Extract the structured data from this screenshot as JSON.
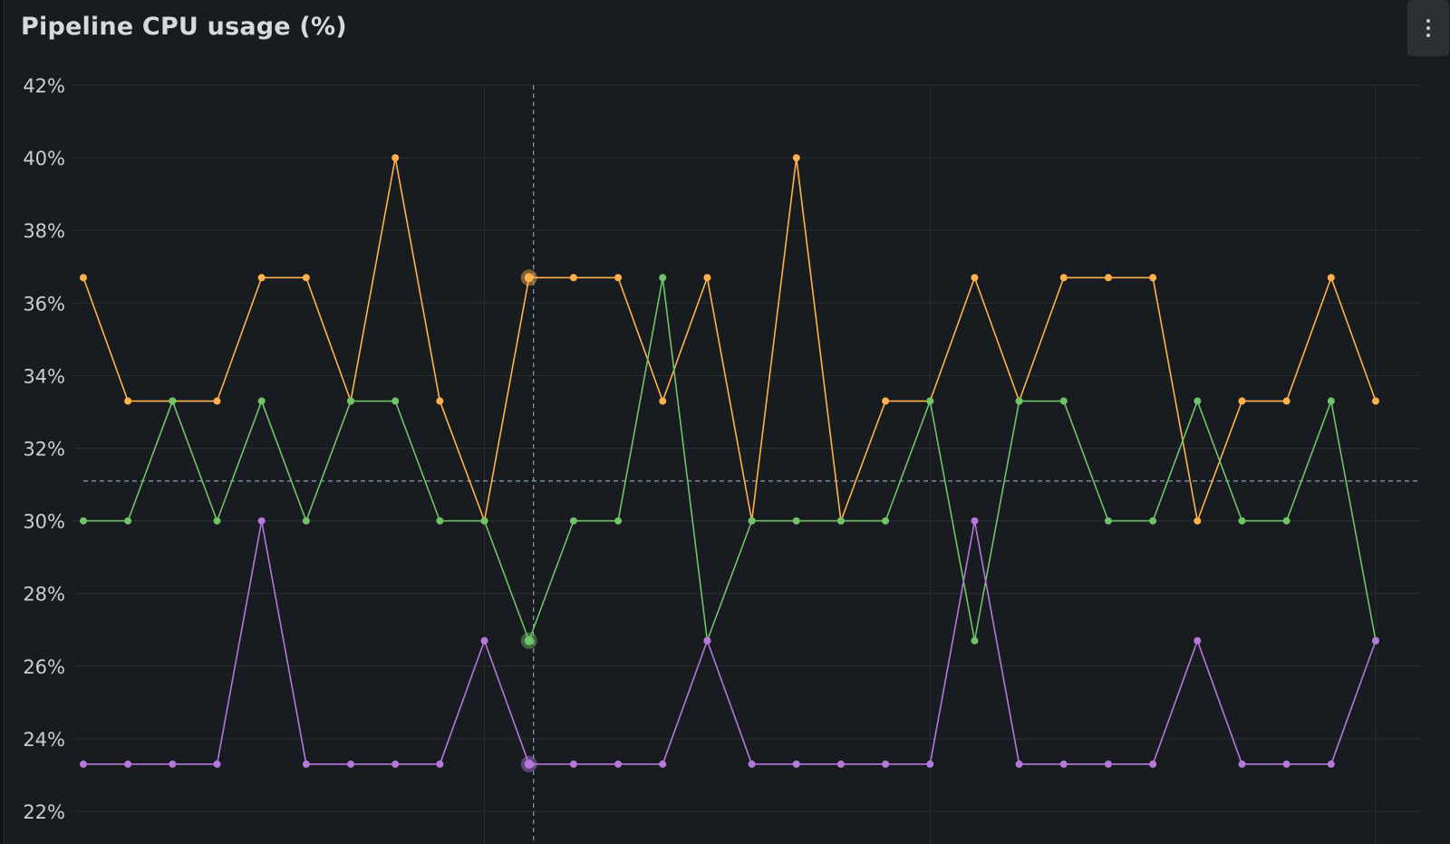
{
  "panel": {
    "title": "Pipeline CPU usage (%)",
    "menu_icon": "kebab-menu-icon"
  },
  "colors": {
    "background": "#181b1f",
    "grid": "#2b2e33",
    "crosshair": "#7a9aa5",
    "orange": "#ffb14d",
    "green": "#6fc467",
    "purple": "#b877db"
  },
  "chart_data": {
    "type": "line",
    "title": "Pipeline CPU usage (%)",
    "xlabel": "",
    "ylabel": "",
    "ylim": [
      22,
      42
    ],
    "yticks": [
      22,
      24,
      26,
      28,
      30,
      32,
      34,
      36,
      38,
      40,
      42
    ],
    "ytick_suffix": "%",
    "grid": true,
    "points_shown": true,
    "hover": {
      "index": 10,
      "y": 31.1
    },
    "series": [
      {
        "color": "#ffb14d",
        "values": [
          36.7,
          33.3,
          33.3,
          33.3,
          36.7,
          36.7,
          33.3,
          40,
          33.3,
          30,
          36.7,
          36.7,
          36.7,
          33.3,
          36.7,
          30,
          40,
          30,
          33.3,
          33.3,
          36.7,
          33.3,
          36.7,
          36.7,
          36.7,
          30,
          33.3,
          33.3,
          36.7,
          33.3
        ]
      },
      {
        "color": "#6fc467",
        "values": [
          30,
          30,
          33.3,
          30,
          33.3,
          30,
          33.3,
          33.3,
          30,
          30,
          26.7,
          30,
          30,
          36.7,
          26.7,
          30,
          30,
          30,
          30,
          33.3,
          26.7,
          33.3,
          33.3,
          30,
          30,
          33.3,
          30,
          30,
          33.3,
          26.7
        ]
      },
      {
        "color": "#b877db",
        "values": [
          23.3,
          23.3,
          23.3,
          23.3,
          30,
          23.3,
          23.3,
          23.3,
          23.3,
          26.7,
          23.3,
          23.3,
          23.3,
          23.3,
          26.7,
          23.3,
          23.3,
          23.3,
          23.3,
          23.3,
          30,
          23.3,
          23.3,
          23.3,
          23.3,
          26.7,
          23.3,
          23.3,
          23.3,
          26.7
        ]
      }
    ]
  }
}
